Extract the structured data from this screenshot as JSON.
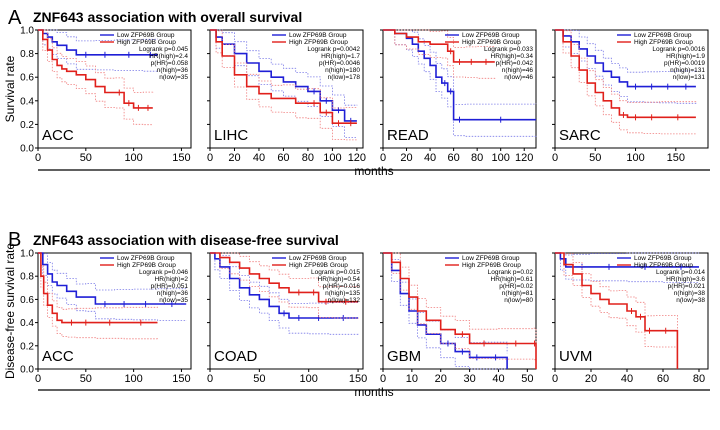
{
  "colors": {
    "low": "#1f1fd6",
    "high": "#e0201b",
    "low_ci": "#7b7be8",
    "high_ci": "#f07f7f",
    "axis": "#000000"
  },
  "sections": [
    {
      "letter": "A",
      "title": "ZNF643 association with overall survival",
      "ylabel": "Survival rate",
      "xlabel": "months"
    },
    {
      "letter": "B",
      "title": "ZNF643 association with disease-free survival",
      "ylabel": "Disease-free survival rate",
      "xlabel": "months"
    }
  ],
  "chart_data": [
    {
      "type": "line",
      "section": 0,
      "cancer": "ACC",
      "xlim": [
        0,
        160
      ],
      "xticks": [
        0,
        50,
        100,
        150
      ],
      "ylim": [
        0,
        1.0
      ],
      "yticks": [
        0.0,
        0.2,
        0.4,
        0.6,
        0.8,
        1.0
      ],
      "ytick_labels": [
        "0.0",
        "0.2",
        "0.4",
        "0.6",
        "0.8",
        "1.0"
      ],
      "legend": [
        "Low ZFP69B Group",
        "High ZFP69B Group"
      ],
      "stats": [
        "Logrank p=0.045",
        "HR(high)=2.4",
        "p(HR)=0.058",
        "n(high)=36",
        "n(low)=35"
      ],
      "series": [
        {
          "name": "Low ZFP69B Group",
          "group": "low",
          "x": [
            0,
            5,
            10,
            15,
            20,
            30,
            40,
            60,
            80,
            110,
            125
          ],
          "y": [
            1.0,
            0.97,
            0.94,
            0.9,
            0.87,
            0.83,
            0.79,
            0.79,
            0.79,
            0.79,
            0.79
          ]
        },
        {
          "name": "High ZFP69B Group",
          "group": "high",
          "x": [
            0,
            5,
            10,
            15,
            20,
            25,
            30,
            40,
            50,
            60,
            70,
            80,
            90,
            100,
            110,
            120
          ],
          "y": [
            1.0,
            0.92,
            0.83,
            0.75,
            0.7,
            0.67,
            0.65,
            0.62,
            0.58,
            0.52,
            0.47,
            0.47,
            0.38,
            0.34,
            0.34,
            0.34
          ]
        }
      ]
    },
    {
      "type": "line",
      "section": 0,
      "cancer": "LIHC",
      "xlim": [
        0,
        125
      ],
      "xticks": [
        0,
        20,
        40,
        60,
        80,
        100,
        120
      ],
      "ylim": [
        0,
        1.0
      ],
      "yticks": [
        0.0,
        0.2,
        0.4,
        0.6,
        0.8,
        1.0
      ],
      "ytick_labels": [],
      "legend": [
        "Low ZFP69B Group",
        "High ZFP69B Group"
      ],
      "stats": [
        "Logrank p=0.0042",
        "HR(high)=1.7",
        "p(HR)=0.0046",
        "n(high)=180",
        "n(low)=178"
      ],
      "series": [
        {
          "name": "Low ZFP69B Group",
          "group": "low",
          "x": [
            0,
            5,
            10,
            20,
            30,
            40,
            50,
            60,
            70,
            80,
            90,
            100,
            110,
            120
          ],
          "y": [
            1.0,
            0.94,
            0.88,
            0.8,
            0.72,
            0.65,
            0.6,
            0.56,
            0.52,
            0.48,
            0.4,
            0.32,
            0.23,
            0.23
          ]
        },
        {
          "name": "High ZFP69B Group",
          "group": "high",
          "x": [
            0,
            5,
            10,
            20,
            30,
            40,
            50,
            60,
            70,
            80,
            90,
            100,
            110,
            120
          ],
          "y": [
            1.0,
            0.9,
            0.78,
            0.62,
            0.52,
            0.46,
            0.42,
            0.42,
            0.38,
            0.38,
            0.3,
            0.21,
            0.21,
            0.21
          ]
        }
      ]
    },
    {
      "type": "line",
      "section": 0,
      "cancer": "READ",
      "xlim": [
        0,
        130
      ],
      "xticks": [
        0,
        20,
        40,
        60,
        80,
        100,
        120
      ],
      "ylim": [
        0,
        1.0
      ],
      "yticks": [
        0.0,
        0.2,
        0.4,
        0.6,
        0.8,
        1.0
      ],
      "ytick_labels": [],
      "legend": [
        "Low ZFP69B Group",
        "High ZFP69B Group"
      ],
      "stats": [
        "Logrank p=0.033",
        "HR(high)=0.34",
        "p(HR)=0.042",
        "n(high)=46",
        "n(low)=46"
      ],
      "series": [
        {
          "name": "Low ZFP69B Group",
          "group": "low",
          "x": [
            0,
            10,
            20,
            25,
            30,
            35,
            40,
            45,
            50,
            55,
            60,
            70,
            130
          ],
          "y": [
            1.0,
            0.97,
            0.93,
            0.88,
            0.82,
            0.76,
            0.7,
            0.6,
            0.55,
            0.48,
            0.24,
            0.24,
            0.24
          ]
        },
        {
          "name": "High ZFP69B Group",
          "group": "high",
          "x": [
            0,
            10,
            20,
            30,
            40,
            50,
            55,
            60,
            70,
            80,
            95
          ],
          "y": [
            1.0,
            0.97,
            0.94,
            0.9,
            0.88,
            0.88,
            0.82,
            0.73,
            0.73,
            0.73,
            0.73
          ]
        }
      ]
    },
    {
      "type": "line",
      "section": 0,
      "cancer": "SARC",
      "xlim": [
        0,
        190
      ],
      "xticks": [
        0,
        50,
        100,
        150
      ],
      "ylim": [
        0,
        1.0
      ],
      "yticks": [
        0.0,
        0.2,
        0.4,
        0.6,
        0.8,
        1.0
      ],
      "ytick_labels": [],
      "legend": [
        "Low ZFP69B Group",
        "High ZFP69B Group"
      ],
      "stats": [
        "Logrank p=0.0016",
        "HR(high)=1.9",
        "p(HR)=0.0019",
        "n(high)=131",
        "n(low)=131"
      ],
      "series": [
        {
          "name": "Low ZFP69B Group",
          "group": "low",
          "x": [
            0,
            10,
            20,
            30,
            40,
            50,
            60,
            70,
            80,
            90,
            110,
            130,
            150,
            175
          ],
          "y": [
            1.0,
            0.95,
            0.9,
            0.84,
            0.78,
            0.72,
            0.65,
            0.6,
            0.56,
            0.52,
            0.52,
            0.52,
            0.52,
            0.52
          ]
        },
        {
          "name": "High ZFP69B Group",
          "group": "high",
          "x": [
            0,
            10,
            20,
            30,
            40,
            50,
            60,
            70,
            80,
            90,
            110,
            130,
            175
          ],
          "y": [
            1.0,
            0.9,
            0.78,
            0.66,
            0.55,
            0.47,
            0.4,
            0.34,
            0.28,
            0.26,
            0.26,
            0.26,
            0.26
          ]
        }
      ]
    },
    {
      "type": "line",
      "section": 1,
      "cancer": "ACC",
      "xlim": [
        0,
        160
      ],
      "xticks": [
        0,
        50,
        100,
        150
      ],
      "ylim": [
        0,
        1.0
      ],
      "yticks": [
        0.0,
        0.2,
        0.4,
        0.6,
        0.8,
        1.0
      ],
      "ytick_labels": [
        "0.0",
        "0.2",
        "0.4",
        "0.6",
        "0.8",
        "1.0"
      ],
      "legend": [
        "Low ZFP69B Group",
        "High ZFP69B Group"
      ],
      "stats": [
        "Logrank p=0.046",
        "HR(high)=2",
        "p(HR)=0.051",
        "n(high)=36",
        "n(low)=35"
      ],
      "series": [
        {
          "name": "Low ZFP69B Group",
          "group": "low",
          "x": [
            0,
            5,
            10,
            15,
            20,
            30,
            40,
            50,
            60,
            80,
            100,
            125,
            155
          ],
          "y": [
            1.0,
            0.9,
            0.82,
            0.75,
            0.72,
            0.67,
            0.62,
            0.62,
            0.56,
            0.56,
            0.56,
            0.56,
            0.56
          ]
        },
        {
          "name": "High ZFP69B Group",
          "group": "high",
          "x": [
            0,
            3,
            6,
            10,
            15,
            20,
            25,
            30,
            40,
            60,
            90,
            125
          ],
          "y": [
            1.0,
            0.8,
            0.65,
            0.55,
            0.48,
            0.42,
            0.4,
            0.4,
            0.4,
            0.4,
            0.4,
            0.4
          ]
        }
      ]
    },
    {
      "type": "line",
      "section": 1,
      "cancer": "COAD",
      "xlim": [
        0,
        155
      ],
      "xticks": [
        0,
        50,
        100,
        150
      ],
      "ylim": [
        0,
        1.0
      ],
      "yticks": [
        0.0,
        0.2,
        0.4,
        0.6,
        0.8,
        1.0
      ],
      "ytick_labels": [],
      "legend": [
        "Low ZFP69B Group",
        "High ZFP69B Group"
      ],
      "stats": [
        "Logrank p=0.015",
        "HR(high)=0.54",
        "p(HR)=0.016",
        "n(high)=135",
        "n(low)=132"
      ],
      "series": [
        {
          "name": "Low ZFP69B Group",
          "group": "low",
          "x": [
            0,
            5,
            10,
            20,
            30,
            40,
            50,
            60,
            70,
            80,
            100,
            120,
            150
          ],
          "y": [
            1.0,
            0.95,
            0.88,
            0.78,
            0.7,
            0.64,
            0.6,
            0.54,
            0.48,
            0.44,
            0.44,
            0.44,
            0.44
          ]
        },
        {
          "name": "High ZFP69B Group",
          "group": "high",
          "x": [
            0,
            10,
            20,
            30,
            40,
            50,
            60,
            70,
            80,
            100,
            110,
            125,
            150
          ],
          "y": [
            1.0,
            0.96,
            0.92,
            0.87,
            0.82,
            0.78,
            0.74,
            0.7,
            0.66,
            0.66,
            0.58,
            0.58,
            0.58
          ]
        }
      ]
    },
    {
      "type": "line",
      "section": 1,
      "cancer": "GBM",
      "xlim": [
        0,
        53
      ],
      "xticks": [
        0,
        10,
        20,
        30,
        40,
        50
      ],
      "ylim": [
        0,
        1.0
      ],
      "yticks": [
        0.0,
        0.2,
        0.4,
        0.6,
        0.8,
        1.0
      ],
      "ytick_labels": [],
      "legend": [
        "Low ZFP69B Group",
        "High ZFP69B Group"
      ],
      "stats": [
        "Logrank p=0.02",
        "HR(high)=0.61",
        "p(HR)=0.02",
        "n(high)=81",
        "n(low)=80"
      ],
      "series": [
        {
          "name": "Low ZFP69B Group",
          "group": "low",
          "x": [
            0,
            3,
            6,
            9,
            12,
            15,
            20,
            25,
            30,
            35,
            43
          ],
          "y": [
            1.0,
            0.85,
            0.65,
            0.5,
            0.38,
            0.3,
            0.22,
            0.15,
            0.1,
            0.1,
            0.0
          ]
        },
        {
          "name": "High ZFP69B Group",
          "group": "high",
          "x": [
            0,
            3,
            6,
            9,
            12,
            15,
            20,
            25,
            30,
            40,
            52,
            53
          ],
          "y": [
            1.0,
            0.92,
            0.78,
            0.62,
            0.5,
            0.42,
            0.34,
            0.3,
            0.22,
            0.22,
            0.22,
            0.0
          ]
        }
      ]
    },
    {
      "type": "line",
      "section": 1,
      "cancer": "UVM",
      "xlim": [
        0,
        85
      ],
      "xticks": [
        0,
        20,
        40,
        60,
        80
      ],
      "ylim": [
        0,
        1.0
      ],
      "yticks": [
        0.0,
        0.2,
        0.4,
        0.6,
        0.8,
        1.0
      ],
      "ytick_labels": [],
      "legend": [
        "Low ZFP69B Group",
        "High ZFP69B Group"
      ],
      "stats": [
        "Logrank p=0.014",
        "HR(high)=3.6",
        "p(HR)=0.021",
        "n(high)=38",
        "n(low)=38"
      ],
      "series": [
        {
          "name": "Low ZFP69B Group",
          "group": "low",
          "x": [
            0,
            3,
            6,
            10,
            20,
            40,
            60,
            80
          ],
          "y": [
            1.0,
            0.95,
            0.88,
            0.88,
            0.88,
            0.88,
            0.88,
            0.88
          ]
        },
        {
          "name": "High ZFP69B Group",
          "group": "high",
          "x": [
            0,
            5,
            10,
            15,
            20,
            25,
            30,
            35,
            40,
            45,
            50,
            55,
            68
          ],
          "y": [
            1.0,
            0.9,
            0.82,
            0.72,
            0.65,
            0.6,
            0.56,
            0.56,
            0.5,
            0.45,
            0.33,
            0.33,
            0.0
          ]
        }
      ]
    }
  ]
}
